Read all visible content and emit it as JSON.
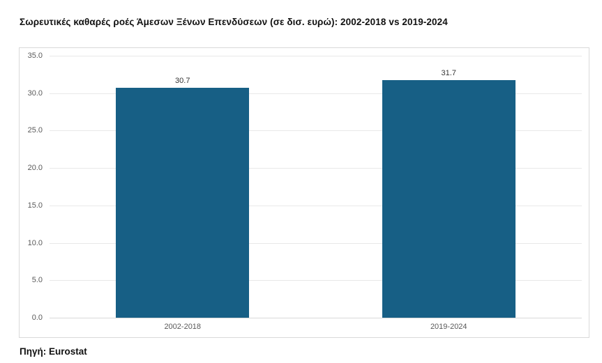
{
  "header": {
    "title": "Σωρευτικές καθαρές ροές Άμεσων Ξένων Επενδύσεων (σε δισ. ευρώ): 2002-2018 vs 2019-2024"
  },
  "footer": {
    "source": "Πηγή: Eurostat"
  },
  "chart_data": {
    "type": "bar",
    "title": "Σωρευτικές καθαρές ροές Άμεσων Ξένων Επενδύσεων (σε δισ. ευρώ): 2002-2018 vs 2019-2024",
    "categories": [
      "2002-2018",
      "2019-2024"
    ],
    "values": [
      30.7,
      31.7
    ],
    "value_labels": [
      "30.7",
      "31.7"
    ],
    "xlabel": "",
    "ylabel": "",
    "ylim": [
      0,
      35
    ],
    "yticks": [
      0,
      5,
      10,
      15,
      20,
      25,
      30,
      35
    ],
    "ytick_labels": [
      "0.0",
      "5.0",
      "10.0",
      "15.0",
      "20.0",
      "25.0",
      "30.0",
      "35.0"
    ],
    "grid": true,
    "legend": "none",
    "annotation_source": "Πηγή: Eurostat",
    "colors": {
      "bar": "#175f85",
      "grid": "#e8e8e8",
      "axis_text": "#595959",
      "value_label": "#333333",
      "frame_border": "#d9d9d9",
      "background": "#ffffff"
    }
  }
}
